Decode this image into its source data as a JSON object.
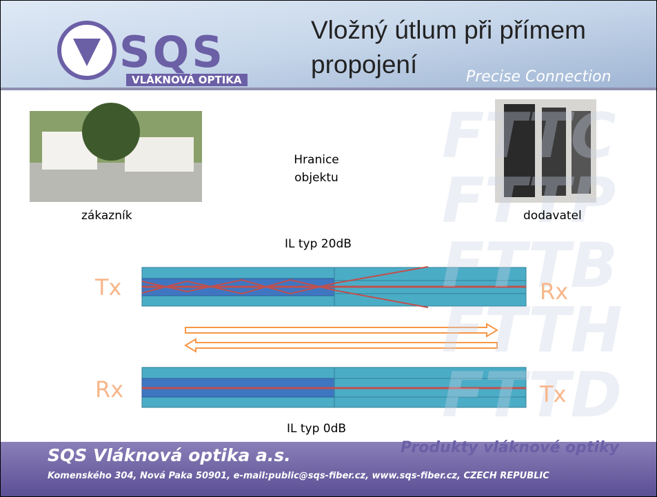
{
  "header": {
    "logo": "SQS",
    "logo_subtitle": "VLÁKNOVÁ OPTIKA",
    "title": "Vložný útlum při přímem propojení",
    "tagline": "Precise Connection"
  },
  "watermark": [
    "FTTC",
    "FTTP",
    "FTTB",
    "FTTH",
    "FTTD"
  ],
  "body": {
    "boundary": "Hranice objektu",
    "customer": "zákazník",
    "supplier": "dodavatel",
    "top_label": "IL typ 20dB",
    "top_left": "Tx",
    "top_right": "Rx",
    "bottom_left": "Rx",
    "bottom_right": "Tx",
    "bottom_label": "IL typ 0dB"
  },
  "footer": {
    "company": "SQS Vláknová optika a.s.",
    "slogan": "Produkty vláknové optiky",
    "address": "Komenského 304, Nová Paka 50901,  e-mail:public@sqs-fiber.cz, www.sqs-fiber.cz, CZECH REPUBLIC"
  }
}
